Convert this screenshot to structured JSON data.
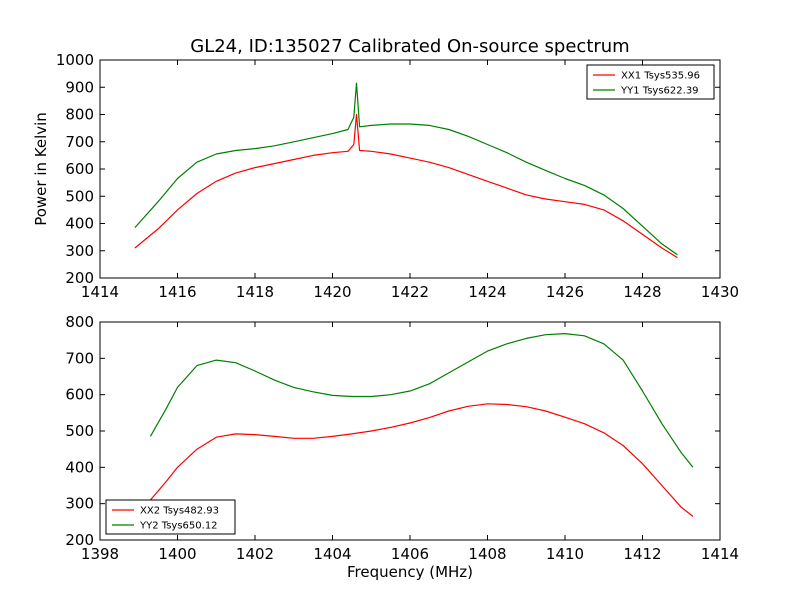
{
  "figure": {
    "title": "GL24, ID:135027 Calibrated On-source spectrum",
    "ylabel": "Power in Kelvin",
    "xlabel": "Frequency (MHz)"
  },
  "chart_data": [
    {
      "type": "line",
      "xlabel": "",
      "ylabel": "Power in Kelvin",
      "xlim": [
        1414,
        1430
      ],
      "ylim": [
        200,
        1000
      ],
      "xticks": [
        1414,
        1416,
        1418,
        1420,
        1422,
        1424,
        1426,
        1428,
        1430
      ],
      "yticks": [
        200,
        300,
        400,
        500,
        600,
        700,
        800,
        900,
        1000
      ],
      "legend_position": "top-right",
      "series": [
        {
          "name": "XX1 Tsys535.96",
          "color": "#ff0000",
          "x": [
            1414.9,
            1415.5,
            1416.0,
            1416.5,
            1417.0,
            1417.5,
            1418.0,
            1418.5,
            1419.0,
            1419.5,
            1420.0,
            1420.4,
            1420.55,
            1420.62,
            1420.7,
            1421.0,
            1421.5,
            1422.0,
            1422.5,
            1423.0,
            1423.5,
            1424.0,
            1424.5,
            1425.0,
            1425.5,
            1426.0,
            1426.5,
            1427.0,
            1427.5,
            1428.0,
            1428.5,
            1428.9
          ],
          "y": [
            310,
            380,
            450,
            510,
            555,
            585,
            605,
            620,
            635,
            650,
            660,
            665,
            690,
            800,
            668,
            665,
            655,
            640,
            625,
            605,
            580,
            555,
            530,
            505,
            490,
            480,
            470,
            450,
            410,
            360,
            310,
            275
          ]
        },
        {
          "name": "YY1 Tsys622.39",
          "color": "#008000",
          "x": [
            1414.9,
            1415.5,
            1416.0,
            1416.5,
            1417.0,
            1417.5,
            1418.0,
            1418.5,
            1419.0,
            1419.5,
            1420.0,
            1420.4,
            1420.55,
            1420.62,
            1420.7,
            1421.0,
            1421.5,
            1422.0,
            1422.5,
            1423.0,
            1423.5,
            1424.0,
            1424.5,
            1425.0,
            1425.5,
            1426.0,
            1426.5,
            1427.0,
            1427.5,
            1428.0,
            1428.5,
            1428.9
          ],
          "y": [
            385,
            480,
            565,
            625,
            655,
            668,
            675,
            685,
            700,
            715,
            730,
            745,
            790,
            915,
            755,
            760,
            765,
            765,
            760,
            745,
            720,
            690,
            660,
            625,
            595,
            565,
            540,
            505,
            455,
            390,
            325,
            285
          ]
        }
      ]
    },
    {
      "type": "line",
      "xlabel": "Frequency (MHz)",
      "ylabel": "",
      "xlim": [
        1398,
        1414
      ],
      "ylim": [
        200,
        800
      ],
      "xticks": [
        1398,
        1400,
        1402,
        1404,
        1406,
        1408,
        1410,
        1412,
        1414
      ],
      "yticks": [
        200,
        300,
        400,
        500,
        600,
        700,
        800
      ],
      "legend_position": "lower-left",
      "series": [
        {
          "name": "XX2 Tsys482.93",
          "color": "#ff0000",
          "x": [
            1399.3,
            1399.7,
            1400.0,
            1400.5,
            1401.0,
            1401.5,
            1402.0,
            1402.5,
            1403.0,
            1403.5,
            1404.0,
            1404.5,
            1405.0,
            1405.5,
            1406.0,
            1406.5,
            1407.0,
            1407.5,
            1408.0,
            1408.5,
            1409.0,
            1409.5,
            1410.0,
            1410.5,
            1411.0,
            1411.5,
            1412.0,
            1412.5,
            1413.0,
            1413.3
          ],
          "y": [
            310,
            360,
            400,
            450,
            483,
            492,
            490,
            485,
            480,
            480,
            485,
            492,
            500,
            510,
            522,
            537,
            555,
            568,
            575,
            573,
            567,
            555,
            538,
            520,
            495,
            460,
            410,
            350,
            290,
            265
          ]
        },
        {
          "name": "YY2 Tsys650.12",
          "color": "#008000",
          "x": [
            1399.3,
            1399.7,
            1400.0,
            1400.5,
            1401.0,
            1401.5,
            1402.0,
            1402.5,
            1403.0,
            1403.5,
            1404.0,
            1404.5,
            1405.0,
            1405.5,
            1406.0,
            1406.5,
            1407.0,
            1407.5,
            1408.0,
            1408.5,
            1409.0,
            1409.5,
            1410.0,
            1410.5,
            1411.0,
            1411.5,
            1412.0,
            1412.5,
            1413.0,
            1413.3
          ],
          "y": [
            485,
            560,
            620,
            680,
            695,
            688,
            665,
            640,
            620,
            608,
            598,
            595,
            595,
            600,
            610,
            630,
            660,
            690,
            720,
            740,
            755,
            765,
            768,
            762,
            740,
            695,
            610,
            520,
            440,
            400
          ]
        }
      ]
    }
  ]
}
